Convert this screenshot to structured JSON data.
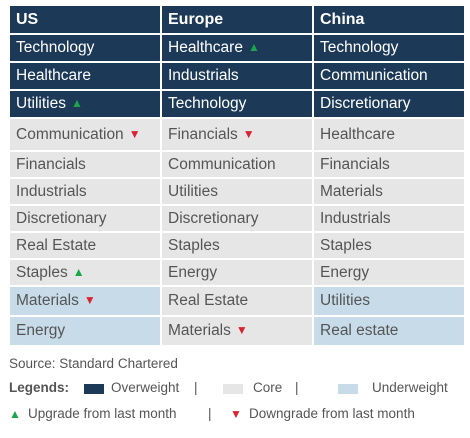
{
  "headers": {
    "us": "US",
    "europe": "Europe",
    "china": "China"
  },
  "rows": [
    {
      "status": "overweight",
      "us": "Technology",
      "europe": "Healthcare",
      "europe_change": "up",
      "china": "Technology"
    },
    {
      "status": "overweight",
      "us": "Healthcare",
      "europe": "Industrials",
      "china": "Communication"
    },
    {
      "status": "overweight",
      "us": "Utilities",
      "us_change": "up",
      "europe": "Technology",
      "china": "Discretionary"
    },
    {
      "status": "core",
      "us": "Communication",
      "us_change": "down",
      "europe": "Financials",
      "europe_change": "down",
      "china": "Healthcare"
    },
    {
      "status": "core",
      "us": "Financials",
      "europe": "Communication",
      "china": "Financials"
    },
    {
      "status": "core",
      "us": "Industrials",
      "europe": "Utilities",
      "china": "Materials"
    },
    {
      "status": "core",
      "us": "Discretionary",
      "europe": "Discretionary",
      "china": "Industrials"
    },
    {
      "status": "core",
      "us": "Real Estate",
      "europe": "Staples",
      "china": "Staples"
    },
    {
      "status": "core",
      "us": "Staples",
      "us_change": "up",
      "europe": "Energy",
      "china": "Energy"
    },
    {
      "status": "mixed",
      "us": "Materials",
      "us_change": "down",
      "europe": "Real Estate",
      "china": "Utilities"
    },
    {
      "status": "mixed",
      "us": "Energy",
      "europe": "Materials",
      "europe_change": "down",
      "china": "Real estate"
    }
  ],
  "source": "Source: Standard Chartered",
  "legend": {
    "title": "Legends:",
    "overweight": "Overweight",
    "core": "Core",
    "underweight": "Underweight",
    "separator": "|",
    "upgrade": "Upgrade from last month",
    "downgrade": "Downgrade from last month",
    "up_glyph": "▲",
    "down_glyph": "▼"
  },
  "colors": {
    "overweight": "#1c3a58",
    "core": "#e6e6e6",
    "underweight": "#c8dbe9",
    "upgrade": "#1aa64a",
    "downgrade": "#d8242f"
  }
}
